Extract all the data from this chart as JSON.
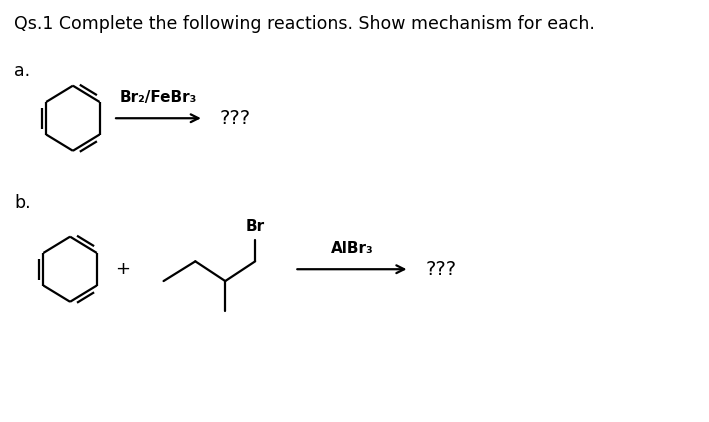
{
  "title": "Qs.1 Complete the following reactions. Show mechanism for each.",
  "label_a": "a.",
  "label_b": "b.",
  "reagent_a": "Br₂/FeBr₃",
  "reagent_b": "AlBr₃",
  "product_a": "???",
  "product_b": "???",
  "plus_sign": "+",
  "bg_color": "#ffffff",
  "text_color": "#000000",
  "reagent_color": "#1a1a1a",
  "title_fontsize": 12.5,
  "label_fontsize": 12.5,
  "reagent_fontsize": 11,
  "product_fontsize": 14,
  "lw": 1.6
}
